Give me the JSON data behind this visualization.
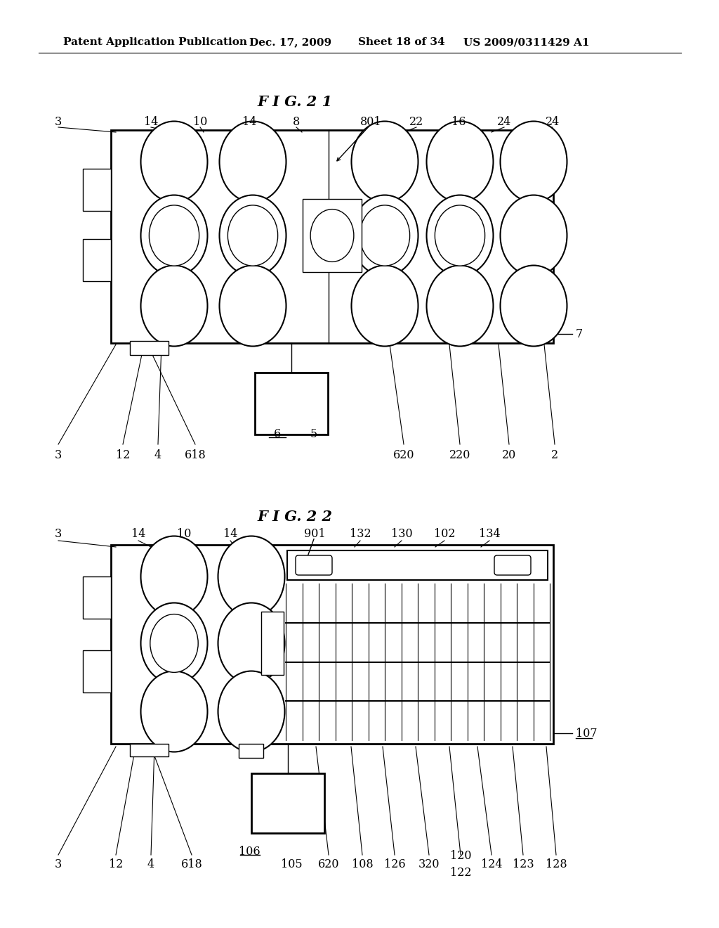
{
  "bg_color": "#ffffff",
  "header_text": "Patent Application Publication",
  "header_date": "Dec. 17, 2009",
  "header_sheet": "Sheet 18 of 34",
  "header_patent": "US 2009/0311429 A1"
}
